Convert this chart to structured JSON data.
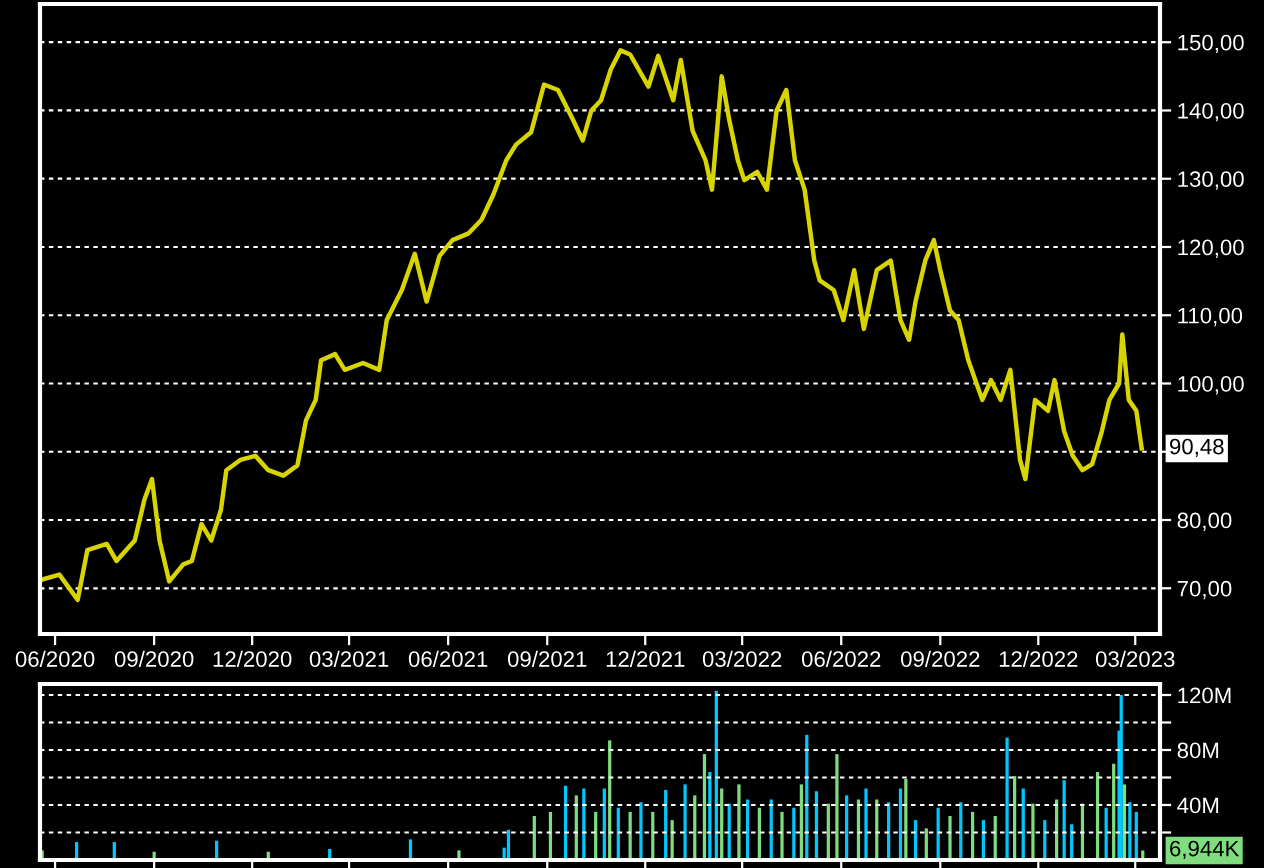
{
  "chart_data": [
    {
      "type": "line",
      "x": [
        "2020-05-18",
        "2020-06-05",
        "2020-06-22",
        "2020-07-01",
        "2020-07-19",
        "2020-07-28",
        "2020-08-14",
        "2020-08-23",
        "2020-08-30",
        "2020-09-06",
        "2020-09-15",
        "2020-09-28",
        "2020-10-06",
        "2020-10-15",
        "2020-10-24",
        "2020-11-02",
        "2020-11-07",
        "2020-11-20",
        "2020-12-04",
        "2020-12-16",
        "2020-12-30",
        "2021-01-12",
        "2021-01-20",
        "2021-01-29",
        "2021-02-03",
        "2021-02-16",
        "2021-02-25",
        "2021-03-14",
        "2021-03-29",
        "2021-04-05",
        "2021-04-19",
        "2021-05-01",
        "2021-05-12",
        "2021-05-24",
        "2021-06-05",
        "2021-06-20",
        "2021-07-02",
        "2021-07-13",
        "2021-07-25",
        "2021-08-03",
        "2021-08-17",
        "2021-08-29",
        "2021-09-11",
        "2021-09-25",
        "2021-10-04",
        "2021-10-12",
        "2021-10-21",
        "2021-10-30",
        "2021-11-08",
        "2021-11-17",
        "2021-12-04",
        "2021-12-13",
        "2021-12-27",
        "2022-01-03",
        "2022-01-14",
        "2022-01-26",
        "2022-02-01",
        "2022-02-10",
        "2022-02-17",
        "2022-02-25",
        "2022-03-03",
        "2022-03-15",
        "2022-03-24",
        "2022-04-02",
        "2022-04-11",
        "2022-04-19",
        "2022-04-28",
        "2022-05-07",
        "2022-05-12",
        "2022-05-25",
        "2022-06-03",
        "2022-06-13",
        "2022-06-22",
        "2022-07-04",
        "2022-07-17",
        "2022-07-26",
        "2022-08-03",
        "2022-08-09",
        "2022-08-18",
        "2022-08-26",
        "2022-09-01",
        "2022-09-10",
        "2022-09-18",
        "2022-09-27",
        "2022-10-10",
        "2022-10-18",
        "2022-10-27",
        "2022-11-05",
        "2022-11-14",
        "2022-11-19",
        "2022-11-28",
        "2022-12-10",
        "2022-12-16",
        "2022-12-25",
        "2023-01-02",
        "2023-01-11",
        "2023-01-20",
        "2023-01-29",
        "2023-02-05",
        "2023-02-14",
        "2023-02-17",
        "2023-02-23",
        "2023-03-02",
        "2023-03-07"
      ],
      "series": [
        {
          "color": "#d8d400",
          "values": [
            71.2,
            72,
            68.3,
            75.6,
            76.5,
            74,
            77,
            83,
            86,
            77,
            71,
            73.5,
            74,
            79.4,
            77,
            81.5,
            87.3,
            88.8,
            89.4,
            87.3,
            86.5,
            88,
            94.6,
            97.6,
            103.4,
            104.3,
            102,
            103,
            102,
            109.3,
            113.7,
            119,
            112,
            118.7,
            121,
            122,
            124,
            127.7,
            132.7,
            135,
            136.8,
            143.8,
            143,
            138.6,
            135.6,
            140,
            141.5,
            146,
            148.8,
            148.2,
            143.5,
            148,
            141.5,
            147.4,
            137,
            132.7,
            128.4,
            145,
            138.6,
            132.7,
            129.8,
            131,
            128.4,
            140,
            143,
            132.7,
            128.4,
            118,
            115.1,
            113.7,
            109.3,
            116.6,
            108,
            116.6,
            118,
            109.3,
            106.4,
            112,
            118,
            121,
            116.6,
            110.7,
            109.3,
            103.4,
            97.6,
            100.5,
            97.6,
            102,
            88.8,
            86,
            97.6,
            96,
            100.5,
            93,
            89.4,
            87.3,
            88.2,
            93,
            97.6,
            100,
            107.2,
            97.6,
            96,
            90.48
          ]
        }
      ],
      "xlim": [
        "2020-05-18",
        "2023-03-24"
      ],
      "xticks": [
        {
          "value": "2020-06-01",
          "label": "06/2020"
        },
        {
          "value": "2020-09-01",
          "label": "09/2020"
        },
        {
          "value": "2020-12-01",
          "label": "12/2020"
        },
        {
          "value": "2021-03-01",
          "label": "03/2021"
        },
        {
          "value": "2021-06-01",
          "label": "06/2021"
        },
        {
          "value": "2021-09-01",
          "label": "09/2021"
        },
        {
          "value": "2021-12-01",
          "label": "12/2021"
        },
        {
          "value": "2022-03-01",
          "label": "03/2022"
        },
        {
          "value": "2022-06-01",
          "label": "06/2022"
        },
        {
          "value": "2022-09-01",
          "label": "09/2022"
        },
        {
          "value": "2022-12-01",
          "label": "12/2022"
        },
        {
          "value": "2023-03-01",
          "label": "03/2023"
        }
      ],
      "ylim": [
        63.3,
        155.6
      ],
      "yticks": [
        {
          "value": 70,
          "label": "70,00"
        },
        {
          "value": 80,
          "label": "80,00"
        },
        {
          "value": 90,
          "label": null
        },
        {
          "value": 100,
          "label": "100,00"
        },
        {
          "value": 110,
          "label": "110,00"
        },
        {
          "value": 120,
          "label": "120,00"
        },
        {
          "value": 130,
          "label": "130,00"
        },
        {
          "value": 140,
          "label": "140,00"
        },
        {
          "value": 150,
          "label": "150,00"
        }
      ],
      "grid": "y",
      "annotations": [
        {
          "text": "90,48",
          "x": "2023-03-07",
          "y": 90.48
        }
      ]
    },
    {
      "type": "bar",
      "x": [
        "2020-05-20",
        "2020-06-21",
        "2020-07-26",
        "2020-09-01",
        "2020-10-29",
        "2020-12-16",
        "2021-02-11",
        "2021-04-27",
        "2021-06-11",
        "2021-07-23",
        "2021-07-27",
        "2021-08-20",
        "2021-09-04",
        "2021-09-18",
        "2021-09-28",
        "2021-10-05",
        "2021-10-16",
        "2021-10-24",
        "2021-10-29",
        "2021-11-06",
        "2021-11-17",
        "2021-11-27",
        "2021-12-08",
        "2021-12-20",
        "2021-12-26",
        "2022-01-07",
        "2022-01-16",
        "2022-01-25",
        "2022-01-30",
        "2022-02-05",
        "2022-02-10",
        "2022-02-17",
        "2022-02-26",
        "2022-03-06",
        "2022-03-17",
        "2022-03-28",
        "2022-04-07",
        "2022-04-18",
        "2022-04-25",
        "2022-04-30",
        "2022-05-09",
        "2022-05-20",
        "2022-05-28",
        "2022-06-06",
        "2022-06-17",
        "2022-06-24",
        "2022-07-04",
        "2022-07-15",
        "2022-07-26",
        "2022-07-31",
        "2022-08-09",
        "2022-08-19",
        "2022-08-30",
        "2022-09-10",
        "2022-09-20",
        "2022-10-01",
        "2022-10-11",
        "2022-10-22",
        "2022-11-02",
        "2022-11-09",
        "2022-11-17",
        "2022-11-26",
        "2022-12-07",
        "2022-12-18",
        "2022-12-25",
        "2023-01-01",
        "2023-01-11",
        "2023-01-25",
        "2023-02-02",
        "2023-02-09",
        "2023-02-14",
        "2023-02-16",
        "2023-02-19",
        "2023-02-24",
        "2023-03-02",
        "2023-03-08"
      ],
      "values": [
        7,
        13,
        13,
        6,
        14,
        6,
        8,
        15,
        7,
        9,
        22,
        32,
        35,
        54,
        47,
        52,
        35,
        52,
        87,
        38,
        35,
        42,
        35,
        51,
        29,
        55,
        47,
        77,
        64,
        123,
        52,
        41,
        55,
        44,
        38,
        44,
        35,
        38,
        55,
        91,
        50,
        41,
        77,
        47,
        44,
        52,
        44,
        42,
        52,
        59,
        29,
        23,
        38,
        32,
        42,
        35,
        29,
        32,
        89,
        61,
        52,
        41,
        29,
        44,
        58,
        26,
        41,
        64,
        38,
        70,
        94,
        120,
        55,
        42,
        35,
        6.944
      ],
      "colors": [
        "#7fdc7f",
        "#00c8ff",
        "#00c8ff",
        "#7fdc7f",
        "#00c8ff",
        "#7fdc7f",
        "#00c8ff",
        "#00c8ff",
        "#7fdc7f",
        "#00c8ff",
        "#00c8ff",
        "#7fdc7f",
        "#7fdc7f",
        "#00c8ff",
        "#7fdc7f",
        "#00c8ff",
        "#7fdc7f",
        "#00c8ff",
        "#7fdc7f",
        "#00c8ff",
        "#7fdc7f",
        "#00c8ff",
        "#7fdc7f",
        "#00c8ff",
        "#7fdc7f",
        "#00c8ff",
        "#7fdc7f",
        "#7fdc7f",
        "#00c8ff",
        "#00c8ff",
        "#7fdc7f",
        "#00c8ff",
        "#7fdc7f",
        "#00c8ff",
        "#7fdc7f",
        "#00c8ff",
        "#7fdc7f",
        "#00c8ff",
        "#7fdc7f",
        "#00c8ff",
        "#00c8ff",
        "#7fdc7f",
        "#7fdc7f",
        "#00c8ff",
        "#7fdc7f",
        "#00c8ff",
        "#7fdc7f",
        "#00c8ff",
        "#00c8ff",
        "#7fdc7f",
        "#00c8ff",
        "#7fdc7f",
        "#00c8ff",
        "#7fdc7f",
        "#00c8ff",
        "#7fdc7f",
        "#00c8ff",
        "#7fdc7f",
        "#00c8ff",
        "#7fdc7f",
        "#00c8ff",
        "#7fdc7f",
        "#00c8ff",
        "#7fdc7f",
        "#00c8ff",
        "#00c8ff",
        "#7fdc7f",
        "#7fdc7f",
        "#00c8ff",
        "#7fdc7f",
        "#00c8ff",
        "#00c8ff",
        "#7fdc7f",
        "#00c8ff",
        "#00c8ff",
        "#7fdc7f"
      ],
      "xlim": [
        "2020-05-18",
        "2023-03-24"
      ],
      "xticks": [
        {
          "value": "2020-06-01",
          "label": null
        },
        {
          "value": "2020-09-01",
          "label": null
        },
        {
          "value": "2020-12-01",
          "label": null
        },
        {
          "value": "2021-03-01",
          "label": null
        },
        {
          "value": "2021-06-01",
          "label": null
        },
        {
          "value": "2021-09-01",
          "label": null
        },
        {
          "value": "2021-12-01",
          "label": null
        },
        {
          "value": "2022-03-01",
          "label": null
        },
        {
          "value": "2022-06-01",
          "label": null
        },
        {
          "value": "2022-09-01",
          "label": null
        },
        {
          "value": "2022-12-01",
          "label": null
        },
        {
          "value": "2023-03-01",
          "label": null
        }
      ],
      "ylim": [
        0,
        128
      ],
      "yticks": [
        {
          "value": 20,
          "label": null
        },
        {
          "value": 40,
          "label": "40M"
        },
        {
          "value": 60,
          "label": null
        },
        {
          "value": 80,
          "label": "80M"
        },
        {
          "value": 100,
          "label": null
        },
        {
          "value": 120,
          "label": "120M"
        }
      ],
      "grid": "y",
      "tick_labels": "y",
      "annotations": [
        {
          "text": "6,944K",
          "x": "2023-03-08",
          "y": 6.944
        }
      ]
    }
  ]
}
